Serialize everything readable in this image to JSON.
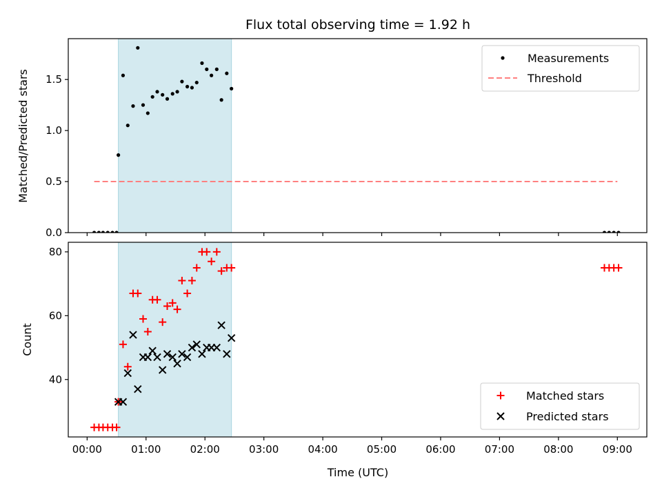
{
  "chart_data": {
    "title": "Flux total observing time = 1.92 h",
    "x_label": "Time (UTC)",
    "x_range_hours": [
      -0.32,
      9.5
    ],
    "x_ticks": [
      {
        "value": 0,
        "label": "00:00"
      },
      {
        "value": 1,
        "label": "01:00"
      },
      {
        "value": 2,
        "label": "02:00"
      },
      {
        "value": 3,
        "label": "03:00"
      },
      {
        "value": 4,
        "label": "04:00"
      },
      {
        "value": 5,
        "label": "05:00"
      },
      {
        "value": 6,
        "label": "06:00"
      },
      {
        "value": 7,
        "label": "07:00"
      },
      {
        "value": 8,
        "label": "08:00"
      },
      {
        "value": 9,
        "label": "09:00"
      }
    ],
    "observing_window_hours": [
      0.53,
      2.45
    ],
    "window_color": "#d4eaf0",
    "top": {
      "type": "scatter",
      "ylabel": "Matched/Predicted stars",
      "ylim": [
        0,
        1.9
      ],
      "y_ticks": [
        {
          "value": 0,
          "label": "0.0"
        },
        {
          "value": 0.5,
          "label": "0.5"
        },
        {
          "value": 1.0,
          "label": "1.0"
        },
        {
          "value": 1.5,
          "label": "1.5"
        }
      ],
      "measurements": {
        "name": "Measurements",
        "color": "#000000",
        "points": [
          [
            0.12,
            0
          ],
          [
            0.2,
            0
          ],
          [
            0.27,
            0
          ],
          [
            0.35,
            0
          ],
          [
            0.43,
            0
          ],
          [
            0.5,
            0
          ],
          [
            0.53,
            0.76
          ],
          [
            0.61,
            1.54
          ],
          [
            0.69,
            1.05
          ],
          [
            0.78,
            1.24
          ],
          [
            0.86,
            1.81
          ],
          [
            0.95,
            1.25
          ],
          [
            1.03,
            1.17
          ],
          [
            1.11,
            1.33
          ],
          [
            1.19,
            1.38
          ],
          [
            1.28,
            1.35
          ],
          [
            1.36,
            1.31
          ],
          [
            1.45,
            1.36
          ],
          [
            1.53,
            1.38
          ],
          [
            1.61,
            1.48
          ],
          [
            1.7,
            1.43
          ],
          [
            1.78,
            1.42
          ],
          [
            1.86,
            1.47
          ],
          [
            1.95,
            1.66
          ],
          [
            2.03,
            1.6
          ],
          [
            2.11,
            1.54
          ],
          [
            2.2,
            1.6
          ],
          [
            2.28,
            1.3
          ],
          [
            2.37,
            1.56
          ],
          [
            2.45,
            1.41
          ],
          [
            8.78,
            0
          ],
          [
            8.86,
            0
          ],
          [
            8.94,
            0
          ],
          [
            9.02,
            0
          ]
        ]
      },
      "threshold": {
        "name": "Threshold",
        "color": "#ff7f7f",
        "value": 0.5,
        "x_range": [
          0.12,
          9.0
        ]
      }
    },
    "bottom": {
      "type": "scatter",
      "ylabel": "Count",
      "ylim": [
        22,
        83
      ],
      "y_ticks": [
        {
          "value": 40,
          "label": "40"
        },
        {
          "value": 60,
          "label": "60"
        },
        {
          "value": 80,
          "label": "80"
        }
      ],
      "series": [
        {
          "name": "Matched stars",
          "marker": "plus",
          "color": "#ff0000",
          "points": [
            [
              0.12,
              25
            ],
            [
              0.2,
              25
            ],
            [
              0.27,
              25
            ],
            [
              0.35,
              25
            ],
            [
              0.43,
              25
            ],
            [
              0.5,
              25
            ],
            [
              0.53,
              33
            ],
            [
              0.61,
              51
            ],
            [
              0.69,
              44
            ],
            [
              0.78,
              67
            ],
            [
              0.86,
              67
            ],
            [
              0.95,
              59
            ],
            [
              1.03,
              55
            ],
            [
              1.11,
              65
            ],
            [
              1.19,
              65
            ],
            [
              1.28,
              58
            ],
            [
              1.36,
              63
            ],
            [
              1.45,
              64
            ],
            [
              1.53,
              62
            ],
            [
              1.61,
              71
            ],
            [
              1.7,
              67
            ],
            [
              1.78,
              71
            ],
            [
              1.86,
              75
            ],
            [
              1.95,
              80
            ],
            [
              2.03,
              80
            ],
            [
              2.11,
              77
            ],
            [
              2.2,
              80
            ],
            [
              2.28,
              74
            ],
            [
              2.37,
              75
            ],
            [
              2.45,
              75
            ],
            [
              8.78,
              75
            ],
            [
              8.86,
              75
            ],
            [
              8.94,
              75
            ],
            [
              9.02,
              75
            ]
          ]
        },
        {
          "name": "Predicted stars",
          "marker": "x",
          "color": "#000000",
          "points": [
            [
              0.53,
              33
            ],
            [
              0.61,
              33
            ],
            [
              0.69,
              42
            ],
            [
              0.78,
              54
            ],
            [
              0.86,
              37
            ],
            [
              0.95,
              47
            ],
            [
              1.03,
              47
            ],
            [
              1.11,
              49
            ],
            [
              1.19,
              47
            ],
            [
              1.28,
              43
            ],
            [
              1.36,
              48
            ],
            [
              1.45,
              47
            ],
            [
              1.53,
              45
            ],
            [
              1.61,
              48
            ],
            [
              1.7,
              47
            ],
            [
              1.78,
              50
            ],
            [
              1.86,
              51
            ],
            [
              1.95,
              48
            ],
            [
              2.03,
              50
            ],
            [
              2.11,
              50
            ],
            [
              2.2,
              50
            ],
            [
              2.28,
              57
            ],
            [
              2.37,
              48
            ],
            [
              2.45,
              53
            ]
          ]
        }
      ]
    }
  }
}
